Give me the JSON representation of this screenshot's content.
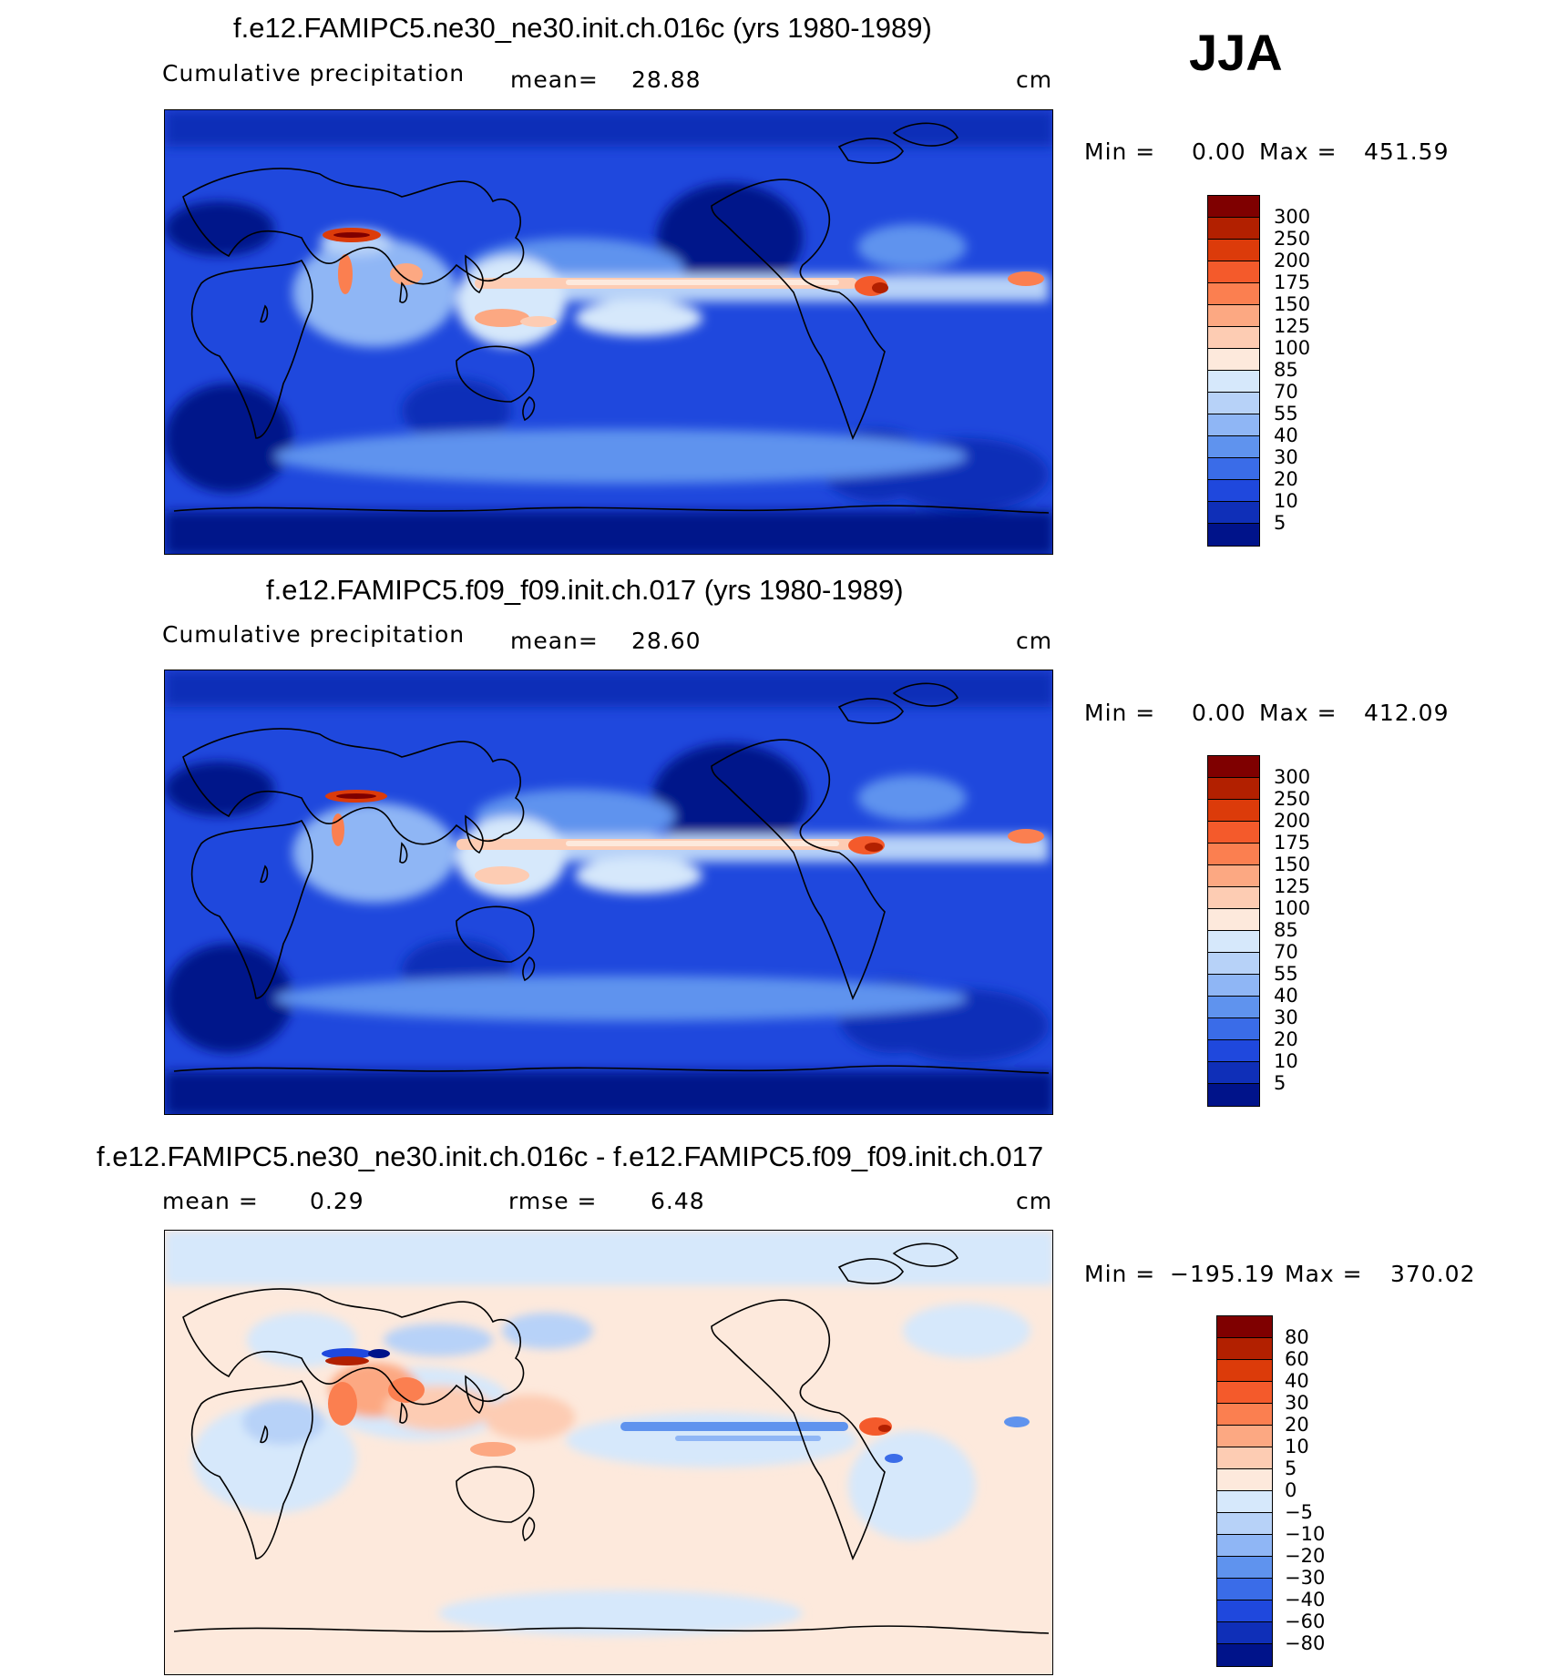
{
  "season": "JJA",
  "panels": [
    {
      "title": "f.e12.FAMIPC5.ne30_ne30.init.ch.016c (yrs 1980-1989)",
      "left_label": "Cumulative precipitation",
      "mean_label": "mean=",
      "mean_value": "28.88",
      "units": "cm",
      "min_label": "Min =",
      "min_value": "0.00",
      "max_label": "Max =",
      "max_value": "451.59",
      "colorbar": {
        "labels": [
          "300",
          "250",
          "200",
          "175",
          "150",
          "125",
          "100",
          "85",
          "70",
          "55",
          "40",
          "30",
          "20",
          "10",
          "5"
        ],
        "colors": [
          "#7f0000",
          "#b22000",
          "#dc3b0a",
          "#f45a2b",
          "#fb7f50",
          "#fca882",
          "#fdccb3",
          "#fde9dc",
          "#d6e8fb",
          "#b7d2f8",
          "#8fb6f5",
          "#5f93ee",
          "#3a6ce8",
          "#1f48dd",
          "#0f2fb8",
          "#00138a"
        ]
      },
      "stats_kind": "precip"
    },
    {
      "title": "f.e12.FAMIPC5.f09_f09.init.ch.017 (yrs 1980-1989)",
      "left_label": "Cumulative precipitation",
      "mean_label": "mean=",
      "mean_value": "28.60",
      "units": "cm",
      "min_label": "Min =",
      "min_value": "0.00",
      "max_label": "Max =",
      "max_value": "412.09",
      "colorbar": {
        "labels": [
          "300",
          "250",
          "200",
          "175",
          "150",
          "125",
          "100",
          "85",
          "70",
          "55",
          "40",
          "30",
          "20",
          "10",
          "5"
        ],
        "colors": [
          "#7f0000",
          "#b22000",
          "#dc3b0a",
          "#f45a2b",
          "#fb7f50",
          "#fca882",
          "#fdccb3",
          "#fde9dc",
          "#d6e8fb",
          "#b7d2f8",
          "#8fb6f5",
          "#5f93ee",
          "#3a6ce8",
          "#1f48dd",
          "#0f2fb8",
          "#00138a"
        ]
      },
      "stats_kind": "precip"
    },
    {
      "title": "f.e12.FAMIPC5.ne30_ne30.init.ch.016c - f.e12.FAMIPC5.f09_f09.init.ch.017",
      "mean_label": "mean =",
      "mean_value": "0.29",
      "rmse_label": "rmse =",
      "rmse_value": "6.48",
      "units": "cm",
      "min_label": "Min =",
      "min_value": "−195.19",
      "max_label": "Max =",
      "max_value": "370.02",
      "colorbar": {
        "labels": [
          "80",
          "60",
          "40",
          "30",
          "20",
          "10",
          "5",
          "0",
          "−5",
          "−10",
          "−20",
          "−30",
          "−40",
          "−60",
          "−80"
        ],
        "colors": [
          "#7f0000",
          "#b22000",
          "#dc3b0a",
          "#f45a2b",
          "#fb7f50",
          "#fca882",
          "#fdccb3",
          "#fde9dc",
          "#d6e8fb",
          "#b7d2f8",
          "#8fb6f5",
          "#5f93ee",
          "#3a6ce8",
          "#1f48dd",
          "#0f2fb8",
          "#00138a"
        ]
      },
      "stats_kind": "diff"
    }
  ]
}
